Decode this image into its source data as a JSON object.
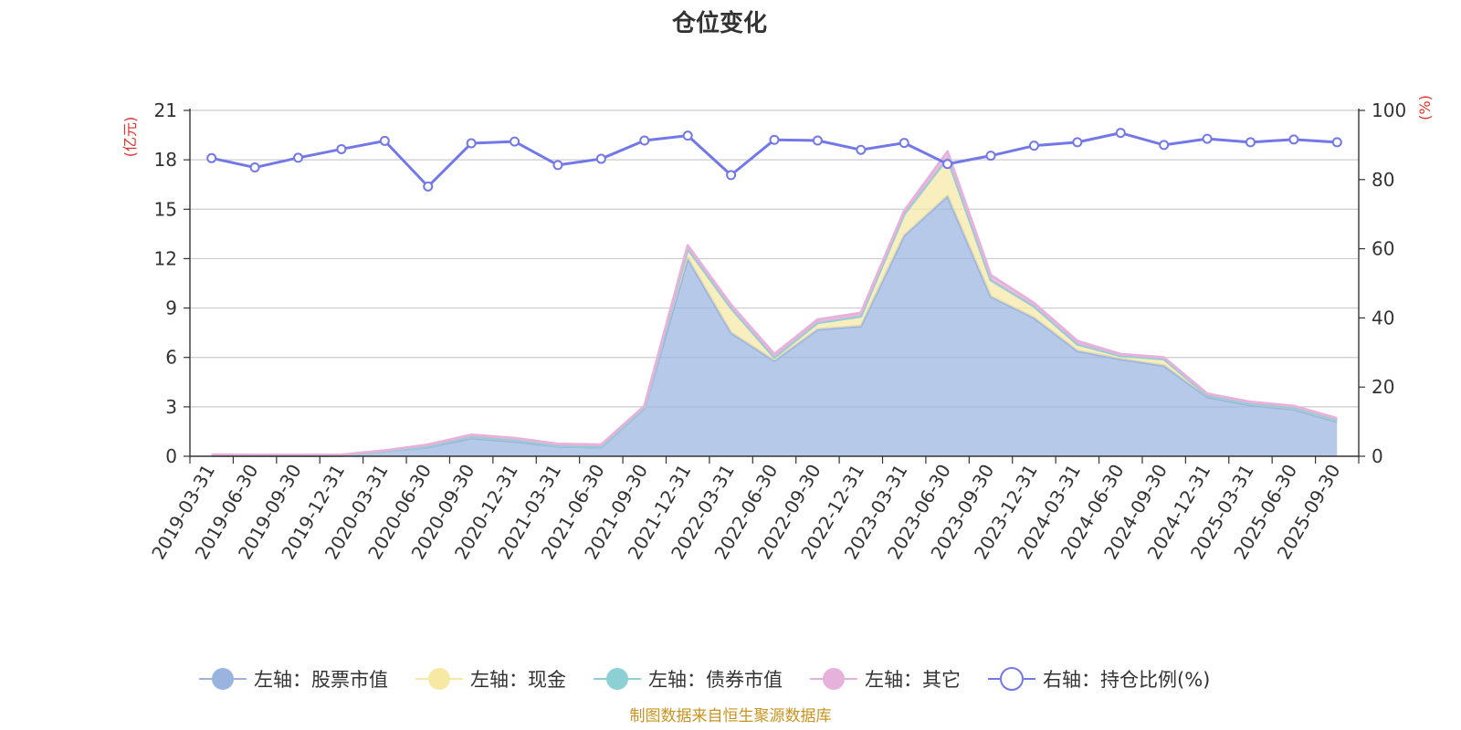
{
  "chart_data": {
    "type": "area",
    "title": "仓位变化",
    "left_axis": {
      "unit": "(亿元)",
      "range": [
        0,
        21
      ],
      "ticks": [
        "0",
        "3",
        "6",
        "9",
        "12",
        "15",
        "18",
        "21"
      ]
    },
    "right_axis": {
      "unit": "(%)",
      "range": [
        0,
        100
      ],
      "ticks": [
        "0",
        "20",
        "40",
        "60",
        "80",
        "100"
      ]
    },
    "categories": [
      "2019-03-31",
      "2019-06-30",
      "2019-09-30",
      "2019-12-31",
      "2020-03-31",
      "2020-06-30",
      "2020-09-30",
      "2020-12-31",
      "2021-03-31",
      "2021-06-30",
      "2021-09-30",
      "2021-12-31",
      "2022-03-31",
      "2022-06-30",
      "2022-09-30",
      "2022-12-31",
      "2023-03-31",
      "2023-06-30",
      "2023-09-30",
      "2023-12-31",
      "2024-03-31",
      "2024-06-30",
      "2024-09-30",
      "2024-12-31",
      "2025-03-31",
      "2025-06-30",
      "2025-09-30"
    ],
    "series": [
      {
        "name": "左轴：股票市值",
        "axis": "left",
        "kind": "stacked-area",
        "color": "#9ab4e0",
        "values": [
          0.05,
          0.03,
          0.03,
          0.04,
          0.3,
          0.55,
          1.1,
          0.9,
          0.6,
          0.55,
          2.9,
          12.0,
          7.5,
          5.8,
          7.7,
          7.9,
          13.4,
          15.8,
          9.7,
          8.4,
          6.4,
          5.9,
          5.5,
          3.6,
          3.1,
          2.85,
          2.1
        ]
      },
      {
        "name": "左轴：现金",
        "axis": "left",
        "kind": "stacked-area",
        "color": "#f7e8a3",
        "values": [
          0.0,
          0.0,
          0.0,
          0.0,
          0.0,
          0.05,
          0.1,
          0.1,
          0.05,
          0.05,
          0.05,
          0.6,
          1.5,
          0.2,
          0.4,
          0.6,
          1.3,
          2.3,
          1.0,
          0.7,
          0.4,
          0.2,
          0.4,
          0.1,
          0.1,
          0.1,
          0.1
        ]
      },
      {
        "name": "左轴：债券市值",
        "axis": "left",
        "kind": "stacked-area",
        "color": "#8dd0d3",
        "values": [
          0,
          0,
          0,
          0,
          0,
          0,
          0,
          0,
          0,
          0,
          0,
          0,
          0,
          0,
          0,
          0,
          0,
          0,
          0,
          0,
          0,
          0,
          0,
          0,
          0,
          0,
          0
        ]
      },
      {
        "name": "左轴：其它",
        "axis": "left",
        "kind": "stacked-area",
        "color": "#e6b2dc",
        "values": [
          0.05,
          0.05,
          0.05,
          0.05,
          0.05,
          0.1,
          0.1,
          0.1,
          0.1,
          0.1,
          0.1,
          0.2,
          0.2,
          0.2,
          0.2,
          0.2,
          0.2,
          0.4,
          0.3,
          0.2,
          0.2,
          0.1,
          0.1,
          0.1,
          0.1,
          0.1,
          0.1
        ]
      },
      {
        "name": "右轴：持仓比例(%)",
        "axis": "right",
        "kind": "line",
        "color": "#7378e8",
        "values": [
          86.2,
          83.5,
          86.3,
          88.8,
          91.2,
          78.0,
          90.5,
          91.0,
          84.2,
          86.0,
          91.3,
          92.7,
          81.3,
          91.5,
          91.3,
          88.6,
          90.6,
          84.5,
          86.9,
          89.8,
          90.8,
          93.5,
          90.0,
          91.8,
          90.8,
          91.6,
          90.8
        ]
      }
    ]
  },
  "source_text": "制图数据来自恒生聚源数据库",
  "colors": {
    "axis_unit": "#e0312b",
    "source": "#c8941f",
    "grid": "#cccccc"
  }
}
